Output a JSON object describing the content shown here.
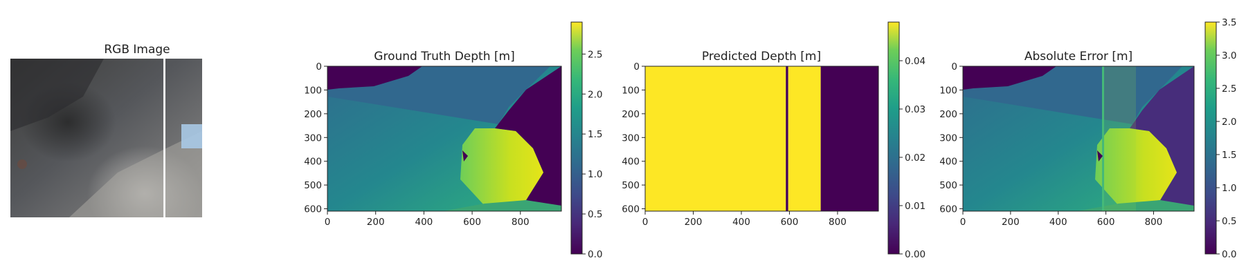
{
  "figure": {
    "background": "#ffffff",
    "colormap": "viridis"
  },
  "chart_data": [
    {
      "type": "image",
      "title": "RGB Image",
      "content": "grayscale lunar/rocky surface photograph with a vertical white seam line near the right edge and a small sky-blue patch at the far right"
    },
    {
      "type": "heatmap",
      "title": "Ground Truth Depth [m]",
      "xlim": [
        0,
        970
      ],
      "ylim": [
        610,
        0
      ],
      "xticks": [
        "0",
        "200",
        "400",
        "600",
        "800"
      ],
      "yticks": [
        "0",
        "100",
        "200",
        "300",
        "400",
        "500",
        "600"
      ],
      "colorbar": {
        "min": 0.0,
        "max": 2.9,
        "ticks": [
          "0.0",
          "0.5",
          "1.0",
          "1.5",
          "2.0",
          "2.5"
        ]
      },
      "grid": false
    },
    {
      "type": "heatmap",
      "title": "Predicted Depth [m]",
      "xlim": [
        0,
        970
      ],
      "ylim": [
        610,
        0
      ],
      "xticks": [
        "0",
        "200",
        "400",
        "600",
        "800"
      ],
      "yticks": [
        "0",
        "100",
        "200",
        "300",
        "400",
        "500",
        "600"
      ],
      "regions": [
        {
          "x_start": 0,
          "x_end": 585,
          "value": 0.048
        },
        {
          "x_start": 585,
          "x_end": 595,
          "value": 0.0
        },
        {
          "x_start": 595,
          "x_end": 730,
          "value": 0.048
        },
        {
          "x_start": 730,
          "x_end": 970,
          "value": 0.0
        }
      ],
      "colorbar": {
        "min": 0.0,
        "max": 0.048,
        "ticks": [
          "0.00",
          "0.01",
          "0.02",
          "0.03",
          "0.04"
        ]
      },
      "grid": false
    },
    {
      "type": "heatmap",
      "title": "Absolute Error [m]",
      "xlim": [
        0,
        970
      ],
      "ylim": [
        610,
        0
      ],
      "xticks": [
        "0",
        "200",
        "400",
        "600",
        "800"
      ],
      "yticks": [
        "0",
        "100",
        "200",
        "300",
        "400",
        "500",
        "600"
      ],
      "colorbar": {
        "min": 0.0,
        "max": 3.5,
        "ticks": [
          "0.0",
          "0.5",
          "1.0",
          "1.5",
          "2.0",
          "2.5",
          "3.0",
          "3.5"
        ]
      },
      "grid": false
    }
  ]
}
